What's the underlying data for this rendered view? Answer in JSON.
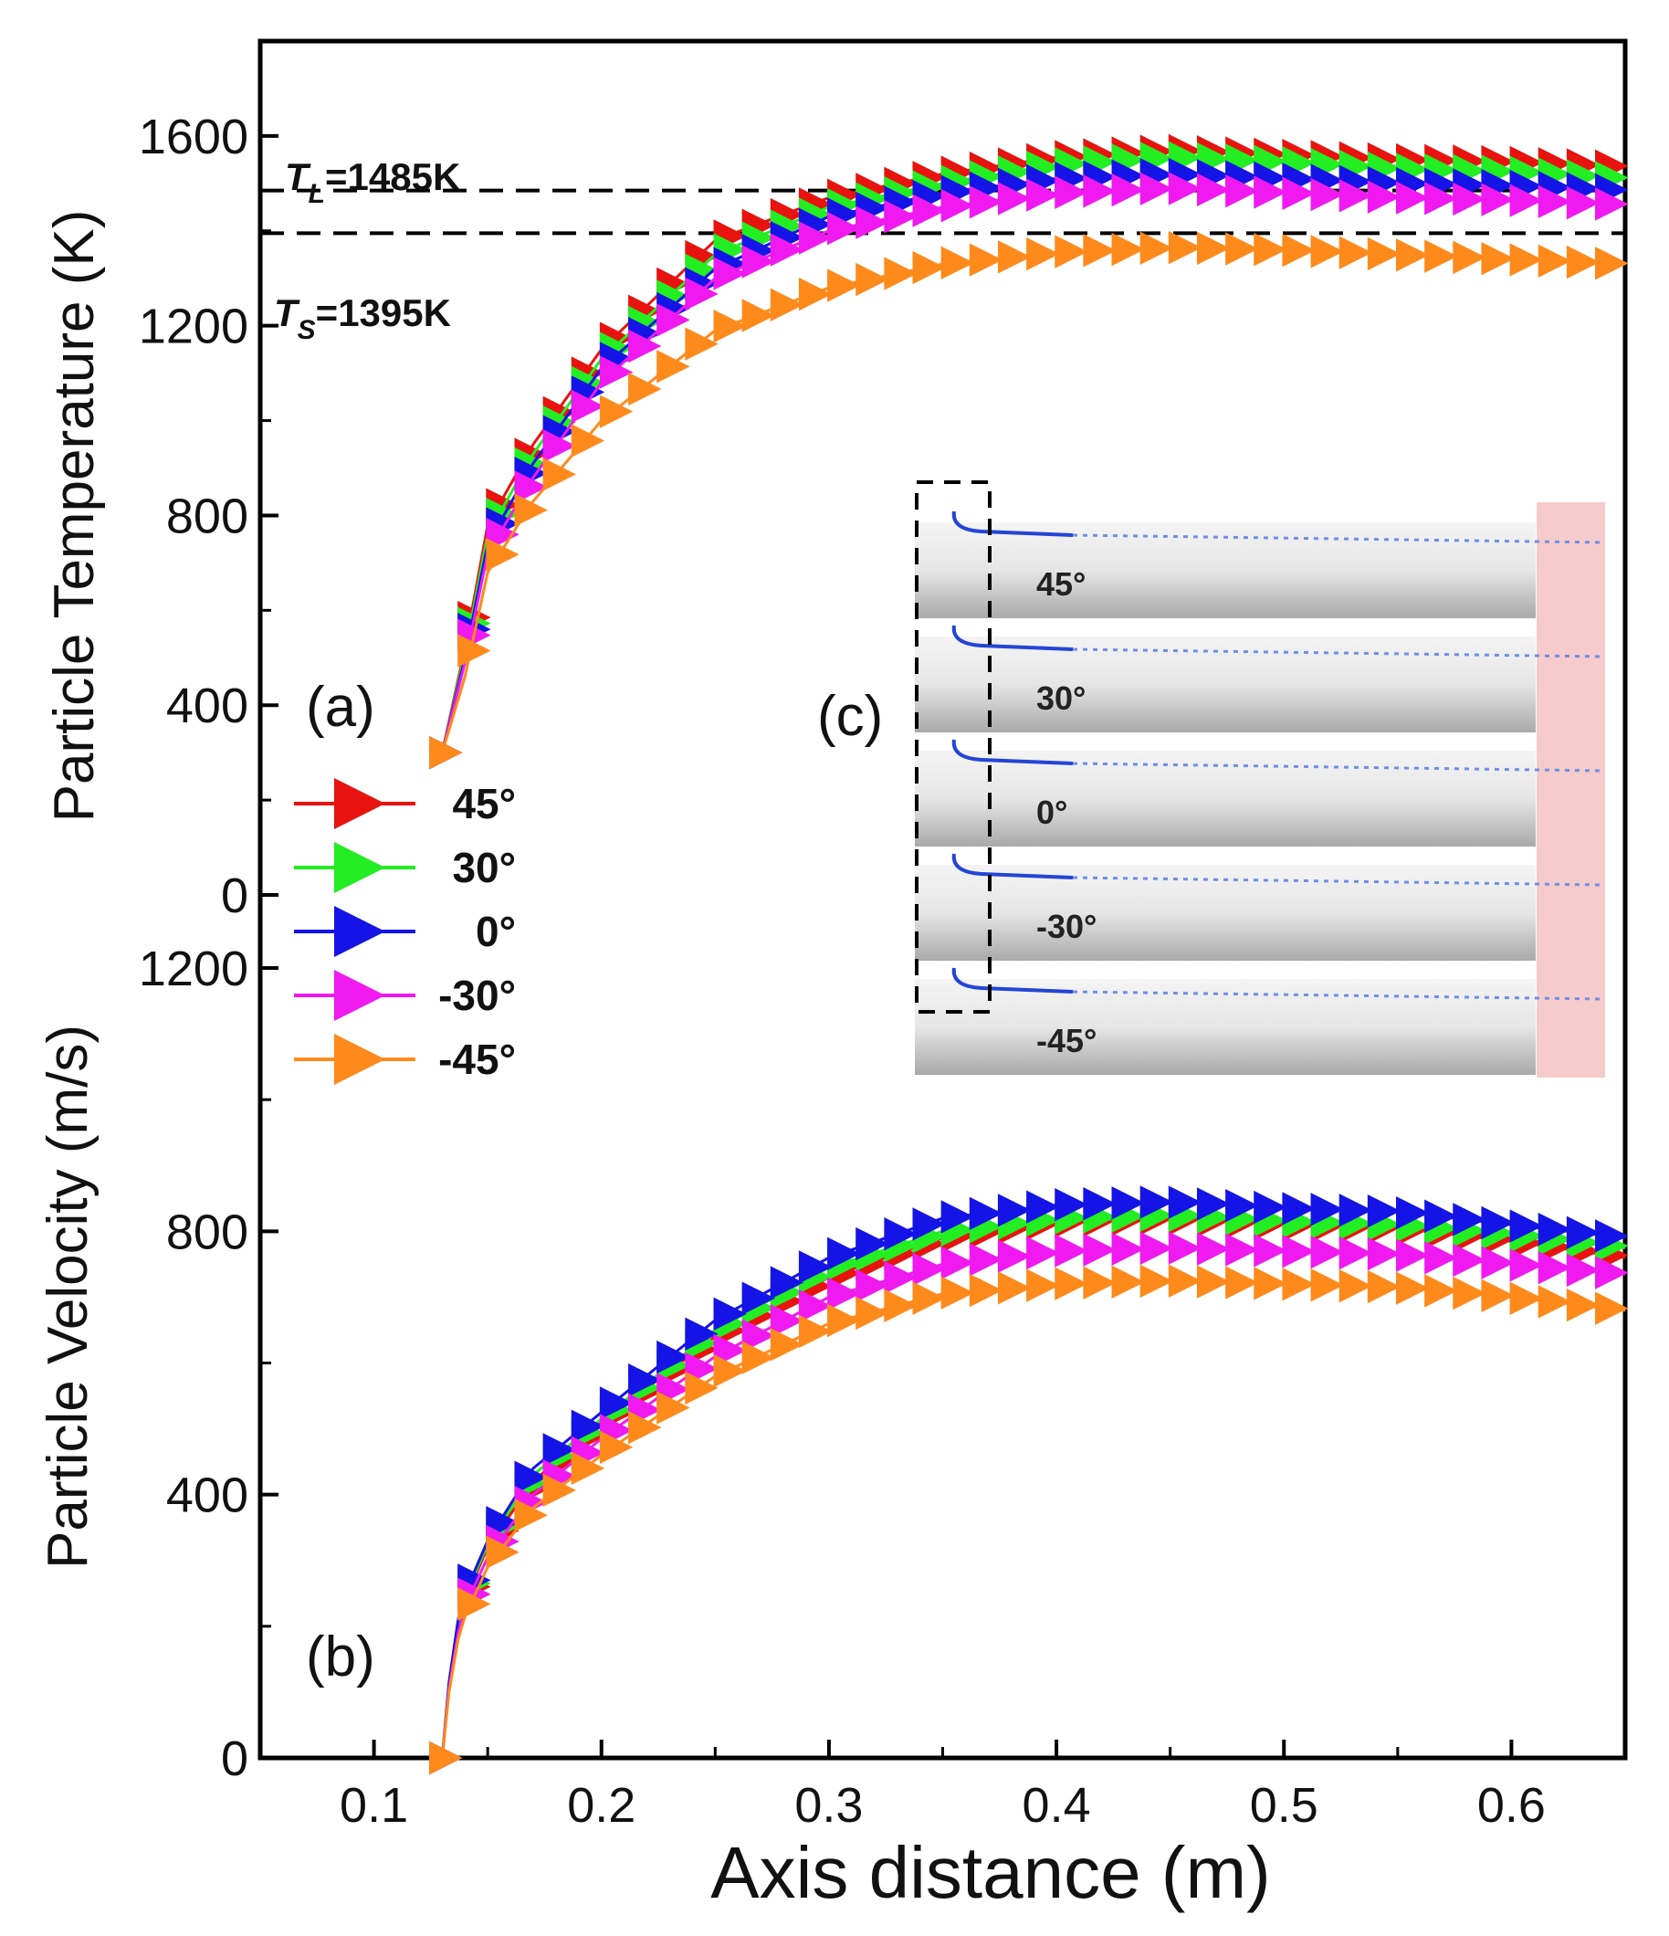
{
  "chart_data": {
    "type": "line",
    "xlabel": "Axis distance (m)",
    "x_ticks": [
      "0.1",
      "0.2",
      "0.3",
      "0.4",
      "0.5",
      "0.6"
    ],
    "xlim": [
      0.05,
      0.65
    ],
    "panels": [
      {
        "id": "a",
        "label": "(a)",
        "ylabel": "Particle Temperature (K)",
        "ylim": [
          0,
          1800
        ],
        "y_ticks": [
          "0",
          "400",
          "800",
          "1200",
          "1600"
        ],
        "reference_lines": [
          {
            "name": "T_L",
            "symbol": "T",
            "subscript": "L",
            "text": "=1485K",
            "value": 1485
          },
          {
            "name": "T_S",
            "symbol": "T",
            "subscript": "S",
            "text": "=1395K",
            "value": 1395
          }
        ],
        "series": [
          {
            "name": "45°",
            "color": "#e8130f",
            "x": [
              0.13,
              0.14,
              0.15,
              0.17,
              0.2,
              0.25,
              0.3,
              0.35,
              0.4,
              0.45,
              0.5,
              0.55,
              0.6,
              0.65
            ],
            "y": [
              300,
              520,
              780,
              950,
              1150,
              1380,
              1470,
              1520,
              1555,
              1570,
              1560,
              1550,
              1545,
              1535
            ]
          },
          {
            "name": "30°",
            "color": "#22ee22",
            "x": [
              0.13,
              0.14,
              0.15,
              0.17,
              0.2,
              0.25,
              0.3,
              0.35,
              0.4,
              0.45,
              0.5,
              0.55,
              0.6,
              0.65
            ],
            "y": [
              300,
              510,
              760,
              930,
              1130,
              1350,
              1450,
              1500,
              1540,
              1555,
              1545,
              1530,
              1525,
              1510
            ]
          },
          {
            "name": "0°",
            "color": "#1414e6",
            "x": [
              0.13,
              0.14,
              0.15,
              0.17,
              0.2,
              0.25,
              0.3,
              0.35,
              0.4,
              0.45,
              0.5,
              0.55,
              0.6,
              0.65
            ],
            "y": [
              300,
              500,
              740,
              910,
              1110,
              1320,
              1430,
              1480,
              1510,
              1520,
              1510,
              1500,
              1495,
              1485
            ]
          },
          {
            "name": "-30°",
            "color": "#f01af0",
            "x": [
              0.13,
              0.14,
              0.15,
              0.17,
              0.2,
              0.25,
              0.3,
              0.35,
              0.4,
              0.45,
              0.5,
              0.55,
              0.6,
              0.65
            ],
            "y": [
              300,
              490,
              720,
              880,
              1080,
              1300,
              1400,
              1450,
              1480,
              1490,
              1480,
              1470,
              1465,
              1455
            ]
          },
          {
            "name": "-45°",
            "color": "#ff8a1c",
            "x": [
              0.13,
              0.14,
              0.15,
              0.17,
              0.2,
              0.25,
              0.3,
              0.35,
              0.4,
              0.45,
              0.5,
              0.55,
              0.6,
              0.65
            ],
            "y": [
              300,
              460,
              680,
              830,
              1000,
              1190,
              1280,
              1330,
              1355,
              1365,
              1360,
              1350,
              1340,
              1330
            ]
          }
        ]
      },
      {
        "id": "b",
        "label": "(b)",
        "ylabel": "Particle Velocity (m/s)",
        "ylim": [
          0,
          1200
        ],
        "y_ticks": [
          "0",
          "400",
          "800",
          "1200"
        ],
        "series": [
          {
            "name": "45°",
            "color": "#e8130f",
            "x": [
              0.13,
              0.133,
              0.137,
              0.14,
              0.15,
              0.17,
              0.2,
              0.25,
              0.3,
              0.35,
              0.4,
              0.45,
              0.5,
              0.55,
              0.6,
              0.65
            ],
            "y": [
              0,
              110,
              200,
              240,
              320,
              420,
              510,
              640,
              730,
              790,
              815,
              820,
              810,
              805,
              785,
              760
            ]
          },
          {
            "name": "30°",
            "color": "#22ee22",
            "x": [
              0.13,
              0.133,
              0.137,
              0.14,
              0.15,
              0.17,
              0.2,
              0.25,
              0.3,
              0.35,
              0.4,
              0.45,
              0.5,
              0.55,
              0.6,
              0.65
            ],
            "y": [
              0,
              112,
              205,
              245,
              325,
              430,
              515,
              650,
              745,
              800,
              820,
              825,
              815,
              810,
              795,
              775
            ]
          },
          {
            "name": "0°",
            "color": "#1414e6",
            "x": [
              0.13,
              0.133,
              0.137,
              0.14,
              0.15,
              0.17,
              0.2,
              0.25,
              0.3,
              0.35,
              0.4,
              0.45,
              0.5,
              0.55,
              0.6,
              0.65
            ],
            "y": [
              0,
              115,
              210,
              250,
              330,
              440,
              525,
              665,
              760,
              820,
              840,
              845,
              835,
              830,
              810,
              790
            ]
          },
          {
            "name": "-30°",
            "color": "#f01af0",
            "x": [
              0.13,
              0.133,
              0.137,
              0.14,
              0.15,
              0.17,
              0.2,
              0.25,
              0.3,
              0.35,
              0.4,
              0.45,
              0.5,
              0.55,
              0.6,
              0.65
            ],
            "y": [
              0,
              105,
              190,
              230,
              305,
              400,
              485,
              610,
              700,
              750,
              770,
              775,
              770,
              765,
              750,
              735
            ]
          },
          {
            "name": "-45°",
            "color": "#ff8a1c",
            "x": [
              0.13,
              0.133,
              0.137,
              0.14,
              0.15,
              0.17,
              0.2,
              0.25,
              0.3,
              0.35,
              0.4,
              0.45,
              0.5,
              0.55,
              0.6,
              0.65
            ],
            "y": [
              0,
              100,
              180,
              215,
              290,
              380,
              460,
              580,
              660,
              705,
              720,
              725,
              720,
              715,
              700,
              680
            ]
          }
        ]
      }
    ],
    "legend": {
      "position": "left-middle",
      "entries": [
        "45°",
        "30°",
        "0°",
        "-30°",
        "-45°"
      ]
    },
    "inset": {
      "label": "(c)",
      "description_labels": [
        "45°",
        "30°",
        "0°",
        "-30°",
        "-45°"
      ]
    }
  }
}
